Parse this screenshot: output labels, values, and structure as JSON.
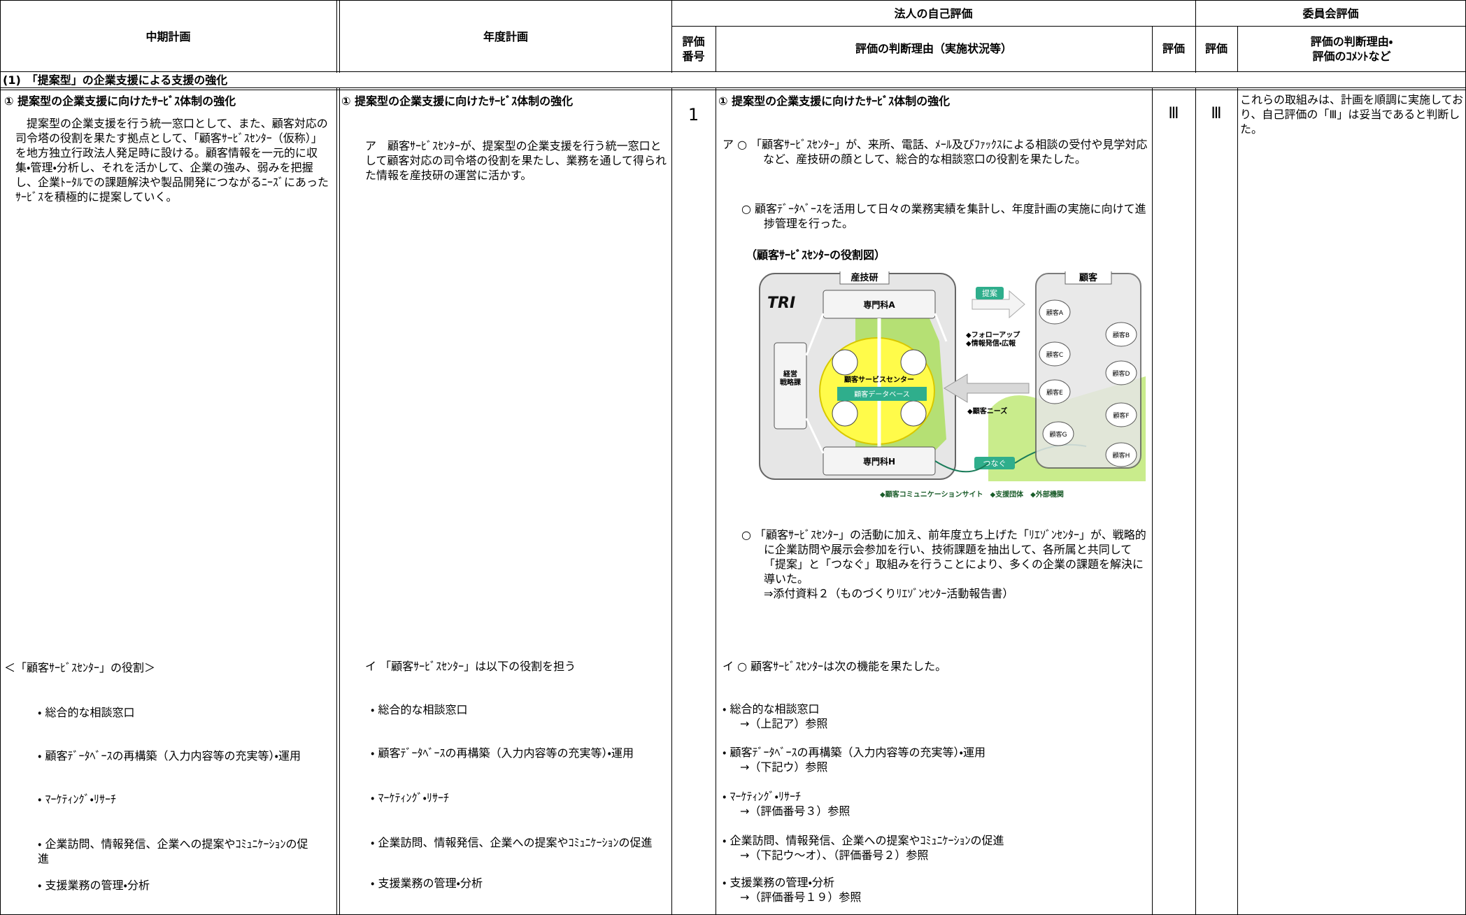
{
  "header": {
    "mid_plan": "中期計画",
    "year_plan": "年度計画",
    "self_eval": "法人の自己評価",
    "eval_no": "評価\n番号",
    "self_reason": "評価の判断理由（実施状況等）",
    "self_grade": "評価",
    "committee": "委員会評価",
    "committee_grade": "評価",
    "committee_reason": "評価の判断理由・\n評価のｺﾒﾝﾄなど"
  },
  "section": "(1)　「提案型」の企業支援による支援の強化",
  "mid_plan": {
    "heading": "① 提案型の企業支援に向けたｻｰﾋﾞｽ体制の強化",
    "text": "　提案型の企業支援を行う統一窓口として、また、顧客対応の司令塔の役割を果たす拠点として、「顧客ｻｰﾋﾞｽｾﾝﾀｰ（仮称）」を地方独立行政法人発足時に設ける。顧客情報を一元的に収集・管理・分析し、それを活かして、企業の強み、弱みを把握し、企業ﾄｰﾀﾙでの課題解決や製品開発につながるﾆｰｽﾞにあったｻｰﾋﾞｽを積極的に提案していく。",
    "roles_title": "＜「顧客ｻｰﾋﾞｽｾﾝﾀｰ」の役割＞",
    "roles": [
      "・ 総合的な相談窓口",
      "・ 顧客ﾃﾞｰﾀﾍﾞｰｽの再構築（入力内容等の充実等）・運用",
      "・ ﾏｰｹﾃｨﾝｸﾞ・ﾘｻｰﾁ",
      "・ 企業訪問、情報発信、企業への提案やｺﾐｭﾆｹｰｼｮﾝの促進",
      "・ 支援業務の管理・分析"
    ]
  },
  "year_plan": {
    "heading": "① 提案型の企業支援に向けたｻｰﾋﾞｽ体制の強化",
    "text": "ア　顧客ｻｰﾋﾞｽｾﾝﾀｰが、提案型の企業支援を行う統一窓口として顧客対応の司令塔の役割を果たし、業務を通して得られた情報を産技研の運営に活かす。",
    "roles_title": "イ 「顧客ｻｰﾋﾞｽｾﾝﾀｰ」は以下の役割を担う",
    "roles": [
      "・ 総合的な相談窓口",
      "・ 顧客ﾃﾞｰﾀﾍﾞｰｽの再構築（入力内容等の充実等）・運用",
      "・ ﾏｰｹﾃｨﾝｸﾞ・ﾘｻｰﾁ",
      "・ 企業訪問、情報発信、企業への提案やｺﾐｭﾆｹｰｼｮﾝの促進",
      "・ 支援業務の管理・分析"
    ]
  },
  "eval_no": "1",
  "self_eval": {
    "heading": "① 提案型の企業支援に向けたｻｰﾋﾞｽ体制の強化",
    "a1": "ア ○ 「顧客ｻｰﾋﾞｽｾﾝﾀｰ」が、来所、電話、ﾒｰﾙ及びﾌｧｯｸｽによる相談の受付や見学対応など、産技研の顔として、総合的な相談窓口の役割を果たした。",
    "a2": "○ 顧客ﾃﾞｰﾀﾍﾞｰｽを活用して日々の業務実績を集計し、年度計画の実施に向けて進捗管理を行った。",
    "diagram_title": "（顧客ｻｰﾋﾞｽｾﾝﾀｰの役割図）",
    "a3": "○ 「顧客ｻｰﾋﾞｽｾﾝﾀｰ」の活動に加え、前年度立ち上げた「ﾘｴｿﾞﾝｾﾝﾀｰ」が、戦略的に企業訪問や展示会参加を行い、技術課題を抽出して、各所属と共同して「提案」と「つなぐ」取組みを行うことにより、多くの企業の課題を解決に導いた。\n⇒添付資料２（ものづくりﾘｴｿﾞﾝｾﾝﾀｰ活動報告書）",
    "roles_title": "イ ○ 顧客ｻｰﾋﾞｽｾﾝﾀｰは次の機能を果たした。",
    "roles": [
      {
        "item": "・ 総合的な相談窓口",
        "ref": "→（上記ア）参照"
      },
      {
        "item": "・ 顧客ﾃﾞｰﾀﾍﾞｰｽの再構築（入力内容等の充実等）・運用",
        "ref": "→（下記ウ）参照"
      },
      {
        "item": "・ ﾏｰｹﾃｨﾝｸﾞ・ﾘｻｰﾁ",
        "ref": "→（評価番号３）参照"
      },
      {
        "item": "・ 企業訪問、情報発信、企業への提案やｺﾐｭﾆｹｰｼｮﾝの促進",
        "ref": "→（下記ウ～オ）、（評価番号２）参照"
      },
      {
        "item": "・ 支援業務の管理・分析",
        "ref": "→（評価番号１９）参照"
      }
    ]
  },
  "diagram": {
    "org": "産技研",
    "logo": "TRI",
    "dept_a": "専門科A",
    "dept_h": "専門科H",
    "planning": "経営\n戦略課",
    "center": "顧客サービスセンター",
    "database": "顧客データベース",
    "proposal": "提案",
    "follow": "◆フォローアップ\n◆情報発信・広報",
    "needs": "◆顧客ニーズ",
    "connect": "つなぐ",
    "customers": "顧客",
    "customer_names": [
      "顧客A",
      "顧客B",
      "顧客C",
      "顧客D",
      "顧客E",
      "顧客F",
      "顧客G",
      "顧客H"
    ],
    "footer": "◆顧客コミュニケーションサイト　◆支援団体　◆外部機関"
  },
  "self_grade": "Ⅲ",
  "committee_grade": "Ⅲ",
  "committee_reason": "これらの取組みは、計画を順調に実施しており、自己評価の「Ⅲ」は妥当であると判断した。"
}
